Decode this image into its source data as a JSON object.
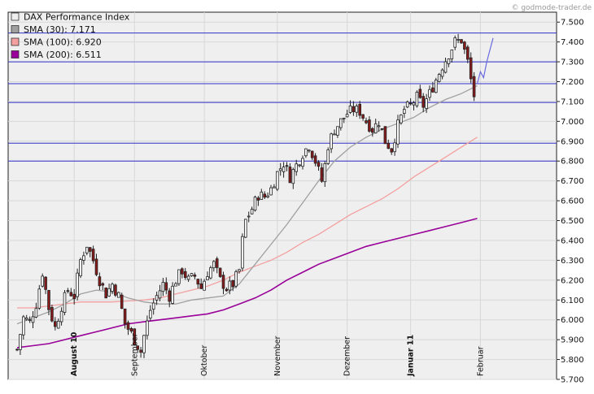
{
  "watermark": "© godmode-trader.de",
  "chart_data": {
    "type": "candlestick",
    "title": "DAX Performance Index",
    "ylim": [
      5700,
      7550
    ],
    "y_ticks": [
      "5.700",
      "5.800",
      "5.900",
      "6.000",
      "6.100",
      "6.200",
      "6.300",
      "6.400",
      "6.500",
      "6.600",
      "6.700",
      "6.800",
      "6.900",
      "7.000",
      "7.100",
      "7.200",
      "7.300",
      "7.400",
      "7.500"
    ],
    "y_tick_values": [
      5700,
      5800,
      5900,
      6000,
      6100,
      6200,
      6300,
      6400,
      6500,
      6600,
      6700,
      6800,
      6900,
      7000,
      7100,
      7200,
      7300,
      7400,
      7500
    ],
    "x_labels": [
      {
        "label": "August 10",
        "bar": 18,
        "bold": true
      },
      {
        "label": "September",
        "bar": 37,
        "bold": false
      },
      {
        "label": "Oktober",
        "bar": 59,
        "bold": false
      },
      {
        "label": "November",
        "bar": 82,
        "bold": false
      },
      {
        "label": "Dezember",
        "bar": 104,
        "bold": false
      },
      {
        "label": "Januar 11",
        "bar": 124,
        "bold": true
      },
      {
        "label": "Februar",
        "bar": 146,
        "bold": false
      }
    ],
    "num_bars": 170,
    "horizontal_lines": [
      7445,
      7300,
      7190,
      7095,
      6890,
      6800
    ],
    "legend": [
      {
        "label": "DAX Performance Index",
        "color": "#eeeeee"
      },
      {
        "label": "SMA (30): 7.171",
        "color": "#a0a0a0"
      },
      {
        "label": "SMA (100): 6.920",
        "color": "#f4a0a0"
      },
      {
        "label": "SMA (200): 6.511",
        "color": "#990099"
      }
    ],
    "close_path": [
      [
        0,
        5850
      ],
      [
        2,
        6010
      ],
      [
        4,
        5990
      ],
      [
        6,
        6080
      ],
      [
        8,
        6240
      ],
      [
        10,
        6060
      ],
      [
        12,
        5960
      ],
      [
        14,
        6070
      ],
      [
        16,
        6150
      ],
      [
        18,
        6120
      ],
      [
        20,
        6300
      ],
      [
        22,
        6380
      ],
      [
        24,
        6300
      ],
      [
        26,
        6200
      ],
      [
        28,
        6130
      ],
      [
        30,
        6180
      ],
      [
        32,
        6120
      ],
      [
        34,
        5980
      ],
      [
        36,
        5930
      ],
      [
        38,
        5870
      ],
      [
        39,
        5840
      ],
      [
        40,
        5920
      ],
      [
        42,
        6050
      ],
      [
        44,
        6120
      ],
      [
        46,
        6180
      ],
      [
        48,
        6120
      ],
      [
        50,
        6200
      ],
      [
        52,
        6250
      ],
      [
        54,
        6200
      ],
      [
        56,
        6220
      ],
      [
        58,
        6160
      ],
      [
        60,
        6240
      ],
      [
        62,
        6280
      ],
      [
        64,
        6200
      ],
      [
        66,
        6160
      ],
      [
        68,
        6180
      ],
      [
        70,
        6250
      ],
      [
        71,
        6400
      ],
      [
        72,
        6500
      ],
      [
        74,
        6560
      ],
      [
        76,
        6630
      ],
      [
        78,
        6620
      ],
      [
        80,
        6660
      ],
      [
        82,
        6740
      ],
      [
        84,
        6790
      ],
      [
        86,
        6720
      ],
      [
        88,
        6780
      ],
      [
        90,
        6840
      ],
      [
        92,
        6880
      ],
      [
        94,
        6800
      ],
      [
        96,
        6700
      ],
      [
        97,
        6780
      ],
      [
        98,
        6880
      ],
      [
        100,
        6960
      ],
      [
        102,
        7000
      ],
      [
        104,
        7040
      ],
      [
        106,
        7060
      ],
      [
        108,
        7050
      ],
      [
        110,
        7000
      ],
      [
        112,
        6960
      ],
      [
        114,
        7000
      ],
      [
        116,
        6900
      ],
      [
        118,
        6860
      ],
      [
        120,
        6980
      ],
      [
        122,
        7060
      ],
      [
        124,
        7080
      ],
      [
        126,
        7120
      ],
      [
        128,
        7080
      ],
      [
        130,
        7140
      ],
      [
        132,
        7210
      ],
      [
        134,
        7280
      ],
      [
        136,
        7340
      ],
      [
        138,
        7400
      ],
      [
        140,
        7410
      ],
      [
        142,
        7300
      ],
      [
        143,
        7210
      ],
      [
        144,
        7130
      ],
      [
        145,
        7190
      ],
      [
        146,
        7280
      ],
      [
        147,
        7300
      ],
      [
        148,
        7220
      ],
      [
        149,
        7380
      ],
      [
        150,
        7420
      ]
    ],
    "sma30": [
      [
        0,
        5980
      ],
      [
        5,
        6010
      ],
      [
        10,
        6040
      ],
      [
        15,
        6080
      ],
      [
        20,
        6130
      ],
      [
        25,
        6150
      ],
      [
        30,
        6140
      ],
      [
        35,
        6110
      ],
      [
        40,
        6090
      ],
      [
        45,
        6080
      ],
      [
        50,
        6080
      ],
      [
        55,
        6100
      ],
      [
        60,
        6110
      ],
      [
        65,
        6120
      ],
      [
        70,
        6180
      ],
      [
        75,
        6280
      ],
      [
        80,
        6380
      ],
      [
        85,
        6480
      ],
      [
        90,
        6590
      ],
      [
        95,
        6700
      ],
      [
        100,
        6800
      ],
      [
        105,
        6870
      ],
      [
        110,
        6920
      ],
      [
        115,
        6960
      ],
      [
        120,
        6990
      ],
      [
        125,
        7020
      ],
      [
        130,
        7070
      ],
      [
        135,
        7110
      ],
      [
        140,
        7140
      ],
      [
        145,
        7180
      ]
    ],
    "sma100": [
      [
        0,
        6060
      ],
      [
        5,
        6060
      ],
      [
        10,
        6070
      ],
      [
        15,
        6080
      ],
      [
        20,
        6090
      ],
      [
        25,
        6090
      ],
      [
        30,
        6090
      ],
      [
        35,
        6095
      ],
      [
        40,
        6100
      ],
      [
        45,
        6110
      ],
      [
        50,
        6130
      ],
      [
        55,
        6150
      ],
      [
        60,
        6170
      ],
      [
        65,
        6200
      ],
      [
        70,
        6240
      ],
      [
        75,
        6270
      ],
      [
        80,
        6300
      ],
      [
        85,
        6340
      ],
      [
        90,
        6390
      ],
      [
        95,
        6430
      ],
      [
        100,
        6480
      ],
      [
        105,
        6530
      ],
      [
        110,
        6570
      ],
      [
        115,
        6610
      ],
      [
        120,
        6660
      ],
      [
        125,
        6720
      ],
      [
        130,
        6770
      ],
      [
        135,
        6820
      ],
      [
        140,
        6870
      ],
      [
        145,
        6920
      ]
    ],
    "sma200": [
      [
        0,
        5860
      ],
      [
        5,
        5870
      ],
      [
        10,
        5880
      ],
      [
        15,
        5900
      ],
      [
        20,
        5920
      ],
      [
        25,
        5940
      ],
      [
        30,
        5960
      ],
      [
        35,
        5980
      ],
      [
        40,
        5990
      ],
      [
        45,
        6000
      ],
      [
        50,
        6010
      ],
      [
        55,
        6020
      ],
      [
        60,
        6030
      ],
      [
        65,
        6050
      ],
      [
        70,
        6080
      ],
      [
        75,
        6110
      ],
      [
        80,
        6150
      ],
      [
        85,
        6200
      ],
      [
        90,
        6240
      ],
      [
        95,
        6280
      ],
      [
        100,
        6310
      ],
      [
        105,
        6340
      ],
      [
        110,
        6370
      ],
      [
        115,
        6390
      ],
      [
        120,
        6410
      ],
      [
        125,
        6430
      ],
      [
        130,
        6450
      ],
      [
        135,
        6470
      ],
      [
        140,
        6490
      ],
      [
        145,
        6511
      ]
    ],
    "projection": [
      [
        145,
        7190
      ],
      [
        146,
        7250
      ],
      [
        147,
        7220
      ],
      [
        148,
        7300
      ],
      [
        150,
        7420
      ]
    ]
  }
}
